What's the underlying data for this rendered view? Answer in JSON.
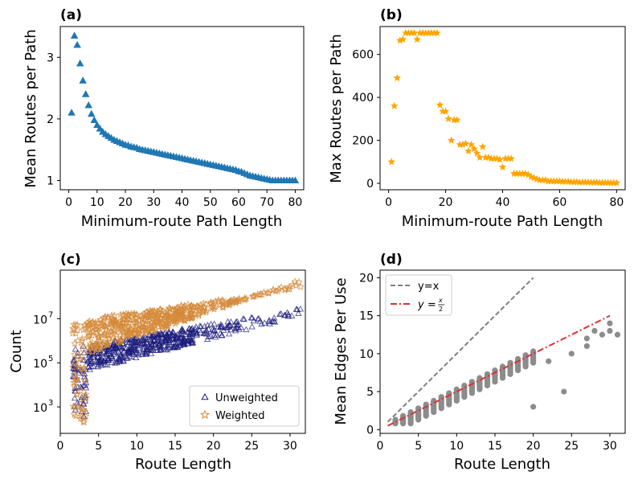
{
  "chart_data": [
    {
      "id": "a",
      "type": "scatter",
      "panel_label": "(a)",
      "xlabel": "Minimum-route Path Length",
      "ylabel": "Mean Routes per Path",
      "xlim": [
        -3,
        83
      ],
      "ylim": [
        0.85,
        3.5
      ],
      "xticks": [
        "0",
        "10",
        "20",
        "30",
        "40",
        "50",
        "60",
        "70",
        "80"
      ],
      "yticks": [
        "1",
        "2",
        "3"
      ],
      "marker": "triangle",
      "color": "#1f77b4",
      "x": [
        1,
        2,
        3,
        4,
        5,
        6,
        7,
        8,
        9,
        10,
        11,
        12,
        13,
        14,
        15,
        16,
        17,
        18,
        19,
        20,
        21,
        22,
        23,
        24,
        25,
        26,
        27,
        28,
        29,
        30,
        31,
        32,
        33,
        34,
        35,
        36,
        37,
        38,
        39,
        40,
        41,
        42,
        43,
        44,
        45,
        46,
        47,
        48,
        49,
        50,
        51,
        52,
        53,
        54,
        55,
        56,
        57,
        58,
        59,
        60,
        61,
        62,
        63,
        64,
        65,
        66,
        67,
        68,
        69,
        70,
        71,
        72,
        73,
        74,
        75,
        76,
        77,
        78,
        79,
        80
      ],
      "y": [
        2.1,
        3.35,
        3.2,
        2.9,
        2.62,
        2.4,
        2.22,
        2.08,
        1.98,
        1.9,
        1.84,
        1.79,
        1.75,
        1.72,
        1.69,
        1.66,
        1.64,
        1.62,
        1.6,
        1.58,
        1.57,
        1.55,
        1.54,
        1.53,
        1.51,
        1.5,
        1.49,
        1.48,
        1.47,
        1.46,
        1.45,
        1.44,
        1.43,
        1.42,
        1.41,
        1.4,
        1.39,
        1.38,
        1.37,
        1.36,
        1.35,
        1.34,
        1.33,
        1.32,
        1.31,
        1.3,
        1.29,
        1.28,
        1.27,
        1.26,
        1.25,
        1.24,
        1.23,
        1.22,
        1.21,
        1.2,
        1.19,
        1.18,
        1.17,
        1.15,
        1.14,
        1.12,
        1.1,
        1.08,
        1.07,
        1.06,
        1.05,
        1.04,
        1.03,
        1.02,
        1.01,
        1.0,
        1.0,
        1.0,
        1.0,
        1.0,
        1.0,
        1.0,
        1.0,
        1.0
      ]
    },
    {
      "id": "b",
      "type": "scatter",
      "panel_label": "(b)",
      "xlabel": "Minimum-route Path Length",
      "ylabel": "Max Routes per Path",
      "xlim": [
        -3,
        83
      ],
      "ylim": [
        -30,
        730
      ],
      "xticks": [
        "0",
        "20",
        "40",
        "60",
        "80"
      ],
      "yticks": [
        "0",
        "200",
        "400",
        "600"
      ],
      "marker": "star",
      "color": "#ffa500",
      "x": [
        1,
        2,
        3,
        4,
        5,
        6,
        7,
        8,
        9,
        10,
        11,
        12,
        13,
        14,
        15,
        16,
        17,
        18,
        19,
        20,
        21,
        22,
        23,
        24,
        25,
        26,
        27,
        28,
        29,
        30,
        31,
        32,
        33,
        34,
        35,
        36,
        37,
        38,
        39,
        40,
        41,
        42,
        43,
        44,
        45,
        46,
        47,
        48,
        49,
        50,
        51,
        52,
        53,
        54,
        55,
        56,
        57,
        58,
        59,
        60,
        61,
        62,
        63,
        64,
        65,
        66,
        67,
        68,
        69,
        70,
        71,
        72,
        73,
        74,
        75,
        76,
        77,
        78,
        79,
        80
      ],
      "y": [
        100,
        360,
        490,
        665,
        670,
        700,
        700,
        700,
        700,
        670,
        700,
        700,
        700,
        700,
        700,
        700,
        700,
        365,
        335,
        335,
        300,
        200,
        295,
        295,
        180,
        180,
        185,
        150,
        180,
        160,
        140,
        120,
        170,
        120,
        120,
        115,
        115,
        115,
        110,
        75,
        115,
        115,
        115,
        45,
        45,
        45,
        45,
        45,
        40,
        30,
        25,
        20,
        15,
        15,
        15,
        10,
        10,
        10,
        10,
        10,
        8,
        8,
        8,
        6,
        6,
        6,
        5,
        5,
        5,
        5,
        4,
        4,
        4,
        3,
        3,
        3,
        3,
        2,
        2,
        2
      ]
    },
    {
      "id": "c",
      "type": "scatter",
      "panel_label": "(c)",
      "xlabel": "Route Length",
      "ylabel": "Count",
      "xscale": "linear",
      "yscale": "log",
      "xlim": [
        0,
        32
      ],
      "ylim_log10": [
        1.8,
        9.2
      ],
      "xticks": [
        "0",
        "5",
        "10",
        "15",
        "20",
        "25",
        "30"
      ],
      "yticks": [
        {
          "base": "10",
          "exp": "3"
        },
        {
          "base": "10",
          "exp": "5"
        },
        {
          "base": "10",
          "exp": "7"
        }
      ],
      "series": [
        {
          "name": "Unweighted",
          "marker": "triangle-open",
          "color": "#1a1a7a",
          "x_max": 31,
          "low_base": 4.5,
          "low_slope": 0.09,
          "high_base": 5.7,
          "high_slope": 0.06,
          "low_min_at_3": 2.5
        },
        {
          "name": "Weighted",
          "marker": "star-open",
          "color": "#d4893a",
          "x_max": 31,
          "low_base": 5.2,
          "low_slope": 0.12,
          "high_base": 6.9,
          "high_slope": 0.05,
          "low_min_at_3": 2.2
        }
      ],
      "legend": [
        {
          "label": "Unweighted"
        },
        {
          "label": "Weighted"
        }
      ],
      "legend_position": "lower-right"
    },
    {
      "id": "d",
      "type": "scatter",
      "panel_label": "(d)",
      "xlabel": "Route Length",
      "ylabel": "Mean Edges Per Use",
      "xlim": [
        0,
        32
      ],
      "ylim": [
        -0.5,
        21
      ],
      "xticks": [
        "0",
        "5",
        "10",
        "15",
        "20",
        "25",
        "30"
      ],
      "yticks": [
        "0",
        "5",
        "10",
        "15",
        "20"
      ],
      "points_color": "#8c8c8c",
      "outliers": [
        [
          20,
          3
        ],
        [
          22,
          9
        ],
        [
          24,
          5
        ],
        [
          25,
          10
        ],
        [
          27,
          11
        ],
        [
          27,
          12
        ],
        [
          28,
          13
        ],
        [
          29,
          12.5
        ],
        [
          30,
          14
        ],
        [
          30,
          13
        ],
        [
          31,
          12.5
        ]
      ],
      "lines": [
        {
          "name": "y=x",
          "label": "y=x",
          "style": "dashed",
          "color": "#808080",
          "x": [
            1,
            20
          ],
          "slope": 1.0
        },
        {
          "name": "y=x/2",
          "label": "y = x/2",
          "style": "dashdot",
          "color": "#e03030",
          "x": [
            1,
            30
          ],
          "slope": 0.5
        }
      ],
      "legend": [
        {
          "label": "y=x"
        },
        {
          "label_prefix": "y =",
          "num": "x",
          "den": "2"
        }
      ],
      "legend_position": "top-left"
    }
  ]
}
